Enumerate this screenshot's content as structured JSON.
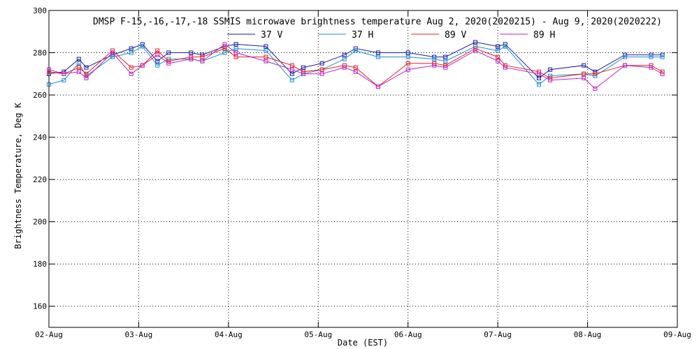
{
  "chart_data": {
    "type": "line",
    "title": "DMSP F-15,-16,-17,-18 SSMIS microwave brightness temperature Aug  2, 2020(2020215) - Aug  9, 2020(2020222)",
    "xlabel": "Date (EST)",
    "ylabel": "Brightness Temperature, Deg K",
    "x_range": [
      "2020-08-02 00:00",
      "2020-08-09 00:00"
    ],
    "ylim": [
      150,
      300
    ],
    "x_tick_labels": [
      "02-Aug",
      "03-Aug",
      "04-Aug",
      "05-Aug",
      "06-Aug",
      "07-Aug",
      "08-Aug",
      "09-Aug"
    ],
    "y_ticks": [
      160,
      180,
      200,
      220,
      240,
      260,
      280,
      300
    ],
    "grid": true,
    "grid_style": "dotted",
    "legend_position": "top-center",
    "marker": "square",
    "series": [
      {
        "name": "37 V",
        "color": "#1a1aa6",
        "points": [
          [
            "2020-08-02 00:00",
            270
          ],
          [
            "2020-08-02 04:00",
            271
          ],
          [
            "2020-08-02 08:00",
            277
          ],
          [
            "2020-08-02 10:00",
            273
          ],
          [
            "2020-08-02 17:00",
            279
          ],
          [
            "2020-08-02 22:00",
            282
          ],
          [
            "2020-08-03 01:00",
            284
          ],
          [
            "2020-08-03 05:00",
            276
          ],
          [
            "2020-08-03 08:00",
            280
          ],
          [
            "2020-08-03 14:00",
            280
          ],
          [
            "2020-08-03 17:00",
            279
          ],
          [
            "2020-08-03 23:00",
            283
          ],
          [
            "2020-08-04 02:00",
            284
          ],
          [
            "2020-08-04 10:00",
            283
          ],
          [
            "2020-08-04 17:00",
            270
          ],
          [
            "2020-08-04 20:00",
            273
          ],
          [
            "2020-08-05 01:00",
            275
          ],
          [
            "2020-08-05 07:00",
            279
          ],
          [
            "2020-08-05 10:00",
            282
          ],
          [
            "2020-08-05 16:00",
            280
          ],
          [
            "2020-08-06 00:00",
            280
          ],
          [
            "2020-08-06 07:00",
            278
          ],
          [
            "2020-08-06 10:00",
            278
          ],
          [
            "2020-08-06 18:00",
            285
          ],
          [
            "2020-08-07 00:00",
            283
          ],
          [
            "2020-08-07 02:00",
            284
          ],
          [
            "2020-08-07 11:00",
            268
          ],
          [
            "2020-08-07 14:00",
            272
          ],
          [
            "2020-08-07 23:00",
            274
          ],
          [
            "2020-08-08 02:00",
            271
          ],
          [
            "2020-08-08 10:00",
            279
          ],
          [
            "2020-08-08 17:00",
            279
          ],
          [
            "2020-08-08 20:00",
            279
          ]
        ]
      },
      {
        "name": "37 H",
        "color": "#1a8fd6",
        "points": [
          [
            "2020-08-02 00:00",
            265
          ],
          [
            "2020-08-02 04:00",
            267
          ],
          [
            "2020-08-02 08:00",
            275
          ],
          [
            "2020-08-02 10:00",
            269
          ],
          [
            "2020-08-02 17:00",
            278
          ],
          [
            "2020-08-02 22:00",
            280
          ],
          [
            "2020-08-03 01:00",
            283
          ],
          [
            "2020-08-03 05:00",
            274
          ],
          [
            "2020-08-03 08:00",
            277
          ],
          [
            "2020-08-03 14:00",
            277
          ],
          [
            "2020-08-03 17:00",
            276
          ],
          [
            "2020-08-03 23:00",
            280
          ],
          [
            "2020-08-04 02:00",
            282
          ],
          [
            "2020-08-04 10:00",
            281
          ],
          [
            "2020-08-04 17:00",
            267
          ],
          [
            "2020-08-04 20:00",
            270
          ],
          [
            "2020-08-05 01:00",
            272
          ],
          [
            "2020-08-05 07:00",
            277
          ],
          [
            "2020-08-05 10:00",
            281
          ],
          [
            "2020-08-05 16:00",
            278
          ],
          [
            "2020-08-06 00:00",
            278
          ],
          [
            "2020-08-06 07:00",
            277
          ],
          [
            "2020-08-06 10:00",
            276
          ],
          [
            "2020-08-06 18:00",
            283
          ],
          [
            "2020-08-07 00:00",
            281
          ],
          [
            "2020-08-07 02:00",
            283
          ],
          [
            "2020-08-07 11:00",
            265
          ],
          [
            "2020-08-07 14:00",
            269
          ],
          [
            "2020-08-07 23:00",
            270
          ],
          [
            "2020-08-08 02:00",
            269
          ],
          [
            "2020-08-08 10:00",
            278
          ],
          [
            "2020-08-08 17:00",
            278
          ],
          [
            "2020-08-08 20:00",
            278
          ]
        ]
      },
      {
        "name": "89 V",
        "color": "#e02020",
        "points": [
          [
            "2020-08-02 00:00",
            271
          ],
          [
            "2020-08-02 04:00",
            270
          ],
          [
            "2020-08-02 08:00",
            273
          ],
          [
            "2020-08-02 10:00",
            270
          ],
          [
            "2020-08-02 17:00",
            281
          ],
          [
            "2020-08-02 22:00",
            273
          ],
          [
            "2020-08-03 01:00",
            274
          ],
          [
            "2020-08-03 05:00",
            281
          ],
          [
            "2020-08-03 08:00",
            276
          ],
          [
            "2020-08-03 14:00",
            278
          ],
          [
            "2020-08-03 17:00",
            278
          ],
          [
            "2020-08-03 23:00",
            282
          ],
          [
            "2020-08-04 02:00",
            278
          ],
          [
            "2020-08-04 10:00",
            278
          ],
          [
            "2020-08-04 17:00",
            274
          ],
          [
            "2020-08-04 20:00",
            271
          ],
          [
            "2020-08-05 01:00",
            272
          ],
          [
            "2020-08-05 07:00",
            274
          ],
          [
            "2020-08-05 10:00",
            273
          ],
          [
            "2020-08-05 16:00",
            264
          ],
          [
            "2020-08-06 00:00",
            275
          ],
          [
            "2020-08-06 07:00",
            275
          ],
          [
            "2020-08-06 10:00",
            274
          ],
          [
            "2020-08-06 18:00",
            282
          ],
          [
            "2020-08-07 00:00",
            278
          ],
          [
            "2020-08-07 02:00",
            274
          ],
          [
            "2020-08-07 11:00",
            271
          ],
          [
            "2020-08-07 14:00",
            268
          ],
          [
            "2020-08-07 23:00",
            270
          ],
          [
            "2020-08-08 02:00",
            270
          ],
          [
            "2020-08-08 10:00",
            274
          ],
          [
            "2020-08-08 17:00",
            274
          ],
          [
            "2020-08-08 20:00",
            271
          ]
        ]
      },
      {
        "name": "89 H",
        "color": "#c21fc2",
        "points": [
          [
            "2020-08-02 00:00",
            272
          ],
          [
            "2020-08-02 04:00",
            270
          ],
          [
            "2020-08-02 08:00",
            271
          ],
          [
            "2020-08-02 10:00",
            268
          ],
          [
            "2020-08-02 17:00",
            280
          ],
          [
            "2020-08-02 22:00",
            270
          ],
          [
            "2020-08-03 01:00",
            274
          ],
          [
            "2020-08-03 05:00",
            279
          ],
          [
            "2020-08-03 08:00",
            275
          ],
          [
            "2020-08-03 14:00",
            277
          ],
          [
            "2020-08-03 17:00",
            276
          ],
          [
            "2020-08-03 23:00",
            284
          ],
          [
            "2020-08-04 02:00",
            280
          ],
          [
            "2020-08-04 10:00",
            276
          ],
          [
            "2020-08-04 17:00",
            272
          ],
          [
            "2020-08-04 20:00",
            270
          ],
          [
            "2020-08-05 01:00",
            270
          ],
          [
            "2020-08-05 07:00",
            273
          ],
          [
            "2020-08-05 10:00",
            271
          ],
          [
            "2020-08-05 16:00",
            264
          ],
          [
            "2020-08-06 00:00",
            272
          ],
          [
            "2020-08-06 07:00",
            274
          ],
          [
            "2020-08-06 10:00",
            273
          ],
          [
            "2020-08-06 18:00",
            281
          ],
          [
            "2020-08-07 00:00",
            276
          ],
          [
            "2020-08-07 02:00",
            273
          ],
          [
            "2020-08-07 11:00",
            270
          ],
          [
            "2020-08-07 14:00",
            267
          ],
          [
            "2020-08-07 23:00",
            268
          ],
          [
            "2020-08-08 02:00",
            263
          ],
          [
            "2020-08-08 10:00",
            274
          ],
          [
            "2020-08-08 17:00",
            273
          ],
          [
            "2020-08-08 20:00",
            270
          ]
        ]
      }
    ]
  }
}
